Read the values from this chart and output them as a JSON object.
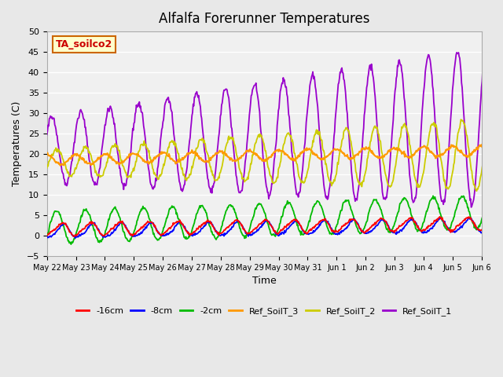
{
  "title": "Alfalfa Forerunner Temperatures",
  "xlabel": "Time",
  "ylabel": "Temperatures (C)",
  "ylim": [
    -5,
    50
  ],
  "yticks": [
    -5,
    0,
    5,
    10,
    15,
    20,
    25,
    30,
    35,
    40,
    45,
    50
  ],
  "bg_color": "#e8e8e8",
  "plot_bg": "#f0f0f0",
  "annotation_text": "TA_soilco2",
  "annotation_color": "#cc0000",
  "annotation_bg": "#ffffcc",
  "annotation_border": "#cc6600",
  "legend": [
    {
      "label": "-16cm",
      "color": "#ff0000"
    },
    {
      "label": "-8cm",
      "color": "#0000ff"
    },
    {
      "label": "-2cm",
      "color": "#00bb00"
    },
    {
      "label": "Ref_SoilT_3",
      "color": "#ff9900"
    },
    {
      "label": "Ref_SoilT_2",
      "color": "#cccc00"
    },
    {
      "label": "Ref_SoilT_1",
      "color": "#9900cc"
    }
  ],
  "x_tick_labels": [
    "May 22",
    "May 23",
    "May 24",
    "May 25",
    "May 26",
    "May 27",
    "May 28",
    "May 29",
    "May 30",
    "May 31",
    "Jun 1",
    "Jun 2",
    "Jun 3",
    "Jun 4",
    "Jun 5",
    "Jun 6"
  ],
  "n_days": 16,
  "pts_per_day": 48
}
